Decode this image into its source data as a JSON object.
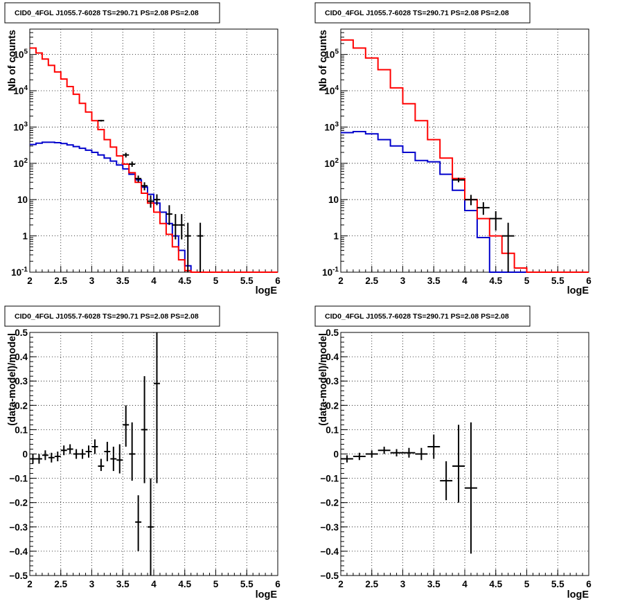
{
  "colors": {
    "data": "#000000",
    "model": "#ff0000",
    "source": "#0000cc",
    "grid": "#000000"
  },
  "chart_data": [
    {
      "type": "line",
      "title": "CID0_4FGL J1055.7-6028 TS=290.71 PS=2.08 PS=2.08",
      "xlabel": "logE",
      "ylabel": "Nb of counts",
      "xlim": [
        2,
        6
      ],
      "ylim": [
        0.1,
        500000
      ],
      "yscale": "log",
      "grid": true,
      "x_ticks": [
        "2",
        "2.5",
        "3",
        "3.5",
        "4",
        "4.5",
        "5",
        "5.5",
        "6"
      ],
      "y_ticks": [
        "10^-1",
        "1",
        "10",
        "10^2",
        "10^3",
        "10^4",
        "10^5"
      ],
      "bin_edges": [
        2.0,
        2.1,
        2.2,
        2.3,
        2.4,
        2.5,
        2.6,
        2.7,
        2.8,
        2.9,
        3.0,
        3.1,
        3.2,
        3.3,
        3.4,
        3.5,
        3.6,
        3.7,
        3.8,
        3.9,
        4.0,
        4.1,
        4.2,
        4.3,
        4.4,
        4.5,
        4.6,
        4.7,
        4.8,
        4.9,
        5.0,
        5.1,
        5.2,
        5.3,
        5.4,
        5.5,
        5.6,
        5.7,
        5.8,
        5.9,
        6.0
      ],
      "series": [
        {
          "role": "model",
          "color": "#ff0000",
          "values": [
            150000,
            110000,
            75000,
            50000,
            33000,
            21000,
            13000,
            8000,
            4500,
            2600,
            1500,
            850,
            450,
            280,
            160,
            95,
            55,
            30,
            15,
            8,
            4.5,
            2.2,
            1.1,
            0.5,
            0.22,
            0.11,
            0.1,
            0.1,
            0.1,
            0.1,
            0.1,
            0.1,
            0.1,
            0.1,
            0.1,
            0.1,
            0.1,
            0.1,
            0.1,
            0.1
          ]
        },
        {
          "role": "source",
          "color": "#0000cc",
          "values": [
            330,
            360,
            380,
            380,
            370,
            350,
            320,
            290,
            260,
            230,
            200,
            170,
            140,
            115,
            90,
            70,
            50,
            35,
            22,
            14,
            8,
            4.5,
            2.2,
            1.0,
            0.4,
            0.15,
            0.1,
            0.1,
            0.1,
            0.1,
            0.1,
            0.1,
            0.1,
            0.1,
            0.1,
            0.1,
            0.1,
            0.1,
            0.1,
            0.1
          ]
        }
      ],
      "points": [
        {
          "x": 3.15,
          "y": 1500,
          "ylo": 1420,
          "yhi": 1580
        },
        {
          "x": 3.55,
          "y": 170,
          "ylo": 145,
          "yhi": 195
        },
        {
          "x": 3.65,
          "y": 95,
          "ylo": 80,
          "yhi": 112
        },
        {
          "x": 3.75,
          "y": 38,
          "ylo": 30,
          "yhi": 46
        },
        {
          "x": 3.85,
          "y": 24,
          "ylo": 18,
          "yhi": 30
        },
        {
          "x": 3.95,
          "y": 9,
          "ylo": 6,
          "yhi": 13
        },
        {
          "x": 4.05,
          "y": 10,
          "ylo": 7,
          "yhi": 14
        },
        {
          "x": 4.25,
          "y": 4,
          "ylo": 2,
          "yhi": 7
        },
        {
          "x": 4.35,
          "y": 2,
          "ylo": 0.8,
          "yhi": 4
        },
        {
          "x": 4.45,
          "y": 2,
          "ylo": 0.8,
          "yhi": 4
        },
        {
          "x": 4.55,
          "y": 1,
          "ylo": 0.1,
          "yhi": 2.3
        },
        {
          "x": 4.75,
          "y": 1,
          "ylo": 0.1,
          "yhi": 2.3
        }
      ]
    },
    {
      "type": "line",
      "title": "CID0_4FGL J1055.7-6028 TS=290.71 PS=2.08 PS=2.08",
      "xlabel": "logE",
      "ylabel": "Nb of counts",
      "xlim": [
        2,
        6
      ],
      "ylim": [
        0.1,
        500000
      ],
      "yscale": "log",
      "grid": true,
      "x_ticks": [
        "2",
        "2.5",
        "3",
        "3.5",
        "4",
        "4.5",
        "5",
        "5.5",
        "6"
      ],
      "y_ticks": [
        "10^-1",
        "1",
        "10",
        "10^2",
        "10^3",
        "10^4",
        "10^5"
      ],
      "bin_edges": [
        2.0,
        2.2,
        2.4,
        2.6,
        2.8,
        3.0,
        3.2,
        3.4,
        3.6,
        3.8,
        4.0,
        4.2,
        4.4,
        4.6,
        4.8,
        5.0,
        5.2,
        5.4,
        5.6,
        5.8,
        6.0
      ],
      "series": [
        {
          "role": "model",
          "color": "#ff0000",
          "values": [
            250000,
            150000,
            80000,
            38000,
            12000,
            4400,
            1500,
            450,
            140,
            38,
            10,
            3,
            1,
            0.33,
            0.13,
            0.1,
            0.1,
            0.1,
            0.1,
            0.1
          ]
        },
        {
          "role": "source",
          "color": "#0000cc",
          "values": [
            700,
            750,
            650,
            450,
            300,
            200,
            120,
            110,
            50,
            18,
            5,
            0.9,
            0.1,
            0.1,
            0.1,
            0.1,
            0.1,
            0.1,
            0.1,
            0.1
          ]
        }
      ],
      "points": [
        {
          "x": 3.9,
          "y": 35,
          "ylo": 30,
          "yhi": 40
        },
        {
          "x": 4.1,
          "y": 10,
          "ylo": 7,
          "yhi": 13.5
        },
        {
          "x": 4.3,
          "y": 6,
          "ylo": 3.8,
          "yhi": 8.5
        },
        {
          "x": 4.5,
          "y": 3,
          "ylo": 1.4,
          "yhi": 4.8
        },
        {
          "x": 4.7,
          "y": 1,
          "ylo": 0.1,
          "yhi": 2.3
        }
      ]
    },
    {
      "type": "scatter",
      "title": "CID0_4FGL J1055.7-6028 TS=290.71 PS=2.08 PS=2.08",
      "xlabel": "logE",
      "ylabel": "(data-model)/model",
      "xlim": [
        2,
        6
      ],
      "ylim": [
        -0.5,
        0.5
      ],
      "grid": true,
      "x_ticks": [
        "2",
        "2.5",
        "3",
        "3.5",
        "4",
        "4.5",
        "5",
        "5.5",
        "6"
      ],
      "y_ticks": [
        "−0.5",
        "−0.4",
        "−0.3",
        "−0.2",
        "−0.1",
        "0",
        "0.1",
        "0.2",
        "0.3",
        "0.4",
        "0.5"
      ],
      "points": [
        {
          "x": 2.05,
          "y": -0.02,
          "ylo": -0.04,
          "yhi": 0.0
        },
        {
          "x": 2.15,
          "y": -0.02,
          "ylo": -0.04,
          "yhi": 0.0
        },
        {
          "x": 2.25,
          "y": -0.005,
          "ylo": -0.025,
          "yhi": 0.015
        },
        {
          "x": 2.35,
          "y": -0.015,
          "ylo": -0.035,
          "yhi": 0.005
        },
        {
          "x": 2.45,
          "y": -0.01,
          "ylo": -0.03,
          "yhi": 0.01
        },
        {
          "x": 2.55,
          "y": 0.015,
          "ylo": -0.005,
          "yhi": 0.035
        },
        {
          "x": 2.65,
          "y": 0.02,
          "ylo": 0.0,
          "yhi": 0.04
        },
        {
          "x": 2.75,
          "y": 0.0,
          "ylo": -0.02,
          "yhi": 0.02
        },
        {
          "x": 2.85,
          "y": 0.0,
          "ylo": -0.02,
          "yhi": 0.02
        },
        {
          "x": 2.95,
          "y": 0.01,
          "ylo": -0.015,
          "yhi": 0.035
        },
        {
          "x": 3.05,
          "y": 0.03,
          "ylo": 0.0,
          "yhi": 0.06
        },
        {
          "x": 3.15,
          "y": -0.05,
          "ylo": -0.07,
          "yhi": -0.02
        },
        {
          "x": 3.25,
          "y": 0.01,
          "ylo": -0.03,
          "yhi": 0.05
        },
        {
          "x": 3.35,
          "y": -0.02,
          "ylo": -0.07,
          "yhi": 0.03
        },
        {
          "x": 3.45,
          "y": -0.025,
          "ylo": -0.08,
          "yhi": 0.04
        },
        {
          "x": 3.55,
          "y": 0.12,
          "ylo": 0.03,
          "yhi": 0.2
        },
        {
          "x": 3.65,
          "y": 0.0,
          "ylo": -0.11,
          "yhi": 0.13
        },
        {
          "x": 3.75,
          "y": -0.28,
          "ylo": -0.4,
          "yhi": -0.17
        },
        {
          "x": 3.85,
          "y": 0.1,
          "ylo": -0.12,
          "yhi": 0.32
        },
        {
          "x": 3.95,
          "y": -0.3,
          "ylo": -0.5,
          "yhi": -0.1
        },
        {
          "x": 4.05,
          "y": 0.29,
          "ylo": -0.12,
          "yhi": 0.5
        }
      ]
    },
    {
      "type": "scatter",
      "title": "CID0_4FGL J1055.7-6028 TS=290.71 PS=2.08 PS=2.08",
      "xlabel": "logE",
      "ylabel": "(data-model)/model",
      "xlim": [
        2,
        6
      ],
      "ylim": [
        -0.5,
        0.5
      ],
      "grid": true,
      "x_ticks": [
        "2",
        "2.5",
        "3",
        "3.5",
        "4",
        "4.5",
        "5",
        "5.5",
        "6"
      ],
      "y_ticks": [
        "−0.5",
        "−0.4",
        "−0.3",
        "−0.2",
        "−0.1",
        "0",
        "0.1",
        "0.2",
        "0.3",
        "0.4",
        "0.5"
      ],
      "points": [
        {
          "x": 2.1,
          "y": -0.02,
          "ylo": -0.035,
          "yhi": -0.005
        },
        {
          "x": 2.3,
          "y": -0.01,
          "ylo": -0.025,
          "yhi": 0.005
        },
        {
          "x": 2.5,
          "y": 0.0,
          "ylo": -0.015,
          "yhi": 0.015
        },
        {
          "x": 2.7,
          "y": 0.015,
          "ylo": 0.0,
          "yhi": 0.03
        },
        {
          "x": 2.9,
          "y": 0.005,
          "ylo": -0.01,
          "yhi": 0.02
        },
        {
          "x": 3.1,
          "y": 0.005,
          "ylo": -0.015,
          "yhi": 0.025
        },
        {
          "x": 3.3,
          "y": 0.0,
          "ylo": -0.025,
          "yhi": 0.025
        },
        {
          "x": 3.5,
          "y": 0.03,
          "ylo": -0.02,
          "yhi": 0.08
        },
        {
          "x": 3.7,
          "y": -0.11,
          "ylo": -0.19,
          "yhi": -0.03
        },
        {
          "x": 3.9,
          "y": -0.05,
          "ylo": -0.2,
          "yhi": 0.12
        },
        {
          "x": 4.1,
          "y": -0.14,
          "ylo": -0.41,
          "yhi": 0.13
        }
      ]
    }
  ]
}
